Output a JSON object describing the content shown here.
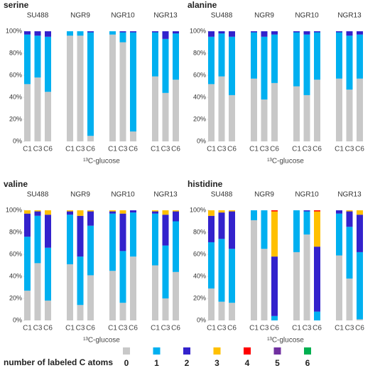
{
  "chart_data": [
    {
      "type": "bar",
      "stacked": true,
      "title": "serine",
      "groups": [
        "SU488",
        "NGR9",
        "NGR10",
        "NGR13"
      ],
      "categories": [
        "C1",
        "C3",
        "C6",
        "C1",
        "C3",
        "C6",
        "C1",
        "C3",
        "C6",
        "C1",
        "C3",
        "C6"
      ],
      "x_label": "¹³C-glucose",
      "ylim": [
        0,
        100
      ],
      "yticks": [
        {
          "value": 0,
          "label": "0%"
        },
        {
          "value": 20,
          "label": "20%"
        },
        {
          "value": 40,
          "label": "40%"
        },
        {
          "value": 60,
          "label": "60%"
        },
        {
          "value": 80,
          "label": "80%"
        },
        {
          "value": 100,
          "label": "100%"
        }
      ],
      "series": [
        {
          "values": [
            52,
            58,
            45,
            96,
            96,
            5,
            97,
            90,
            9,
            59,
            44,
            56
          ]
        },
        {
          "values": [
            45,
            38,
            50,
            4,
            4,
            94,
            3,
            9,
            90,
            40,
            49,
            42
          ]
        },
        {
          "values": [
            3,
            4,
            5,
            0,
            0,
            1,
            0,
            1,
            1,
            1,
            7,
            2
          ]
        },
        {
          "values": [
            0,
            0,
            0,
            0,
            0,
            0,
            0,
            0,
            0,
            0,
            0,
            0
          ]
        },
        {
          "values": [
            0,
            0,
            0,
            0,
            0,
            0,
            0,
            0,
            0,
            0,
            0,
            0
          ]
        },
        {
          "values": [
            0,
            0,
            0,
            0,
            0,
            0,
            0,
            0,
            0,
            0,
            0,
            0
          ]
        },
        {
          "values": [
            0,
            0,
            0,
            0,
            0,
            0,
            0,
            0,
            0,
            0,
            0,
            0
          ]
        }
      ]
    },
    {
      "type": "bar",
      "stacked": true,
      "title": "alanine",
      "groups": [
        "SU488",
        "NGR9",
        "NGR10",
        "NGR13"
      ],
      "categories": [
        "C1",
        "C3",
        "C6",
        "C1",
        "C3",
        "C6",
        "C1",
        "C3",
        "C6",
        "C1",
        "C3",
        "C6"
      ],
      "x_label": "¹³C-glucose",
      "ylim": [
        0,
        100
      ],
      "yticks": [
        {
          "value": 0,
          "label": "0%"
        },
        {
          "value": 20,
          "label": "20%"
        },
        {
          "value": 40,
          "label": "40%"
        },
        {
          "value": 60,
          "label": "60%"
        },
        {
          "value": 80,
          "label": "80%"
        },
        {
          "value": 100,
          "label": "100%"
        }
      ],
      "series": [
        {
          "values": [
            52,
            59,
            42,
            57,
            38,
            53,
            50,
            42,
            56,
            57,
            47,
            57
          ]
        },
        {
          "values": [
            43,
            39,
            53,
            42,
            57,
            44,
            49,
            55,
            43,
            42,
            49,
            40
          ]
        },
        {
          "values": [
            5,
            2,
            5,
            1,
            5,
            3,
            1,
            3,
            1,
            1,
            4,
            3
          ]
        },
        {
          "values": [
            0,
            0,
            0,
            0,
            0,
            0,
            0,
            0,
            0,
            0,
            0,
            0
          ]
        },
        {
          "values": [
            0,
            0,
            0,
            0,
            0,
            0,
            0,
            0,
            0,
            0,
            0,
            0
          ]
        },
        {
          "values": [
            0,
            0,
            0,
            0,
            0,
            0,
            0,
            0,
            0,
            0,
            0,
            0
          ]
        },
        {
          "values": [
            0,
            0,
            0,
            0,
            0,
            0,
            0,
            0,
            0,
            0,
            0,
            0
          ]
        }
      ]
    },
    {
      "type": "bar",
      "stacked": true,
      "title": "valine",
      "groups": [
        "SU488",
        "NGR9",
        "NGR10",
        "NGR13"
      ],
      "categories": [
        "C1",
        "C3",
        "C6",
        "C1",
        "C3",
        "C6",
        "C1",
        "C3",
        "C6",
        "C1",
        "C3",
        "C6"
      ],
      "x_label": "¹³C-glucose",
      "ylim": [
        0,
        100
      ],
      "yticks": [
        {
          "value": 0,
          "label": "0%"
        },
        {
          "value": 20,
          "label": "20%"
        },
        {
          "value": 40,
          "label": "40%"
        },
        {
          "value": 60,
          "label": "60%"
        },
        {
          "value": 80,
          "label": "80%"
        },
        {
          "value": 100,
          "label": "100%"
        }
      ],
      "series": [
        {
          "values": [
            27,
            52,
            18,
            51,
            14,
            41,
            45,
            16,
            58,
            50,
            20,
            44
          ]
        },
        {
          "values": [
            49,
            43,
            48,
            45,
            44,
            45,
            52,
            47,
            40,
            47,
            48,
            46
          ]
        },
        {
          "values": [
            21,
            4,
            30,
            3,
            37,
            13,
            2,
            34,
            2,
            2,
            28,
            9
          ]
        },
        {
          "values": [
            3,
            1,
            4,
            1,
            5,
            1,
            1,
            3,
            0,
            1,
            4,
            1
          ]
        },
        {
          "values": [
            0,
            0,
            0,
            0,
            0,
            0,
            0,
            0,
            0,
            0,
            0,
            0
          ]
        },
        {
          "values": [
            0,
            0,
            0,
            0,
            0,
            0,
            0,
            0,
            0,
            0,
            0,
            0
          ]
        },
        {
          "values": [
            0,
            0,
            0,
            0,
            0,
            0,
            0,
            0,
            0,
            0,
            0,
            0
          ]
        }
      ]
    },
    {
      "type": "bar",
      "stacked": true,
      "title": "histidine",
      "groups": [
        "SU488",
        "NGR9",
        "NGR10",
        "NGR13"
      ],
      "categories": [
        "C1",
        "C3",
        "C6",
        "C1",
        "C3",
        "C6",
        "C1",
        "C3",
        "C6",
        "C1",
        "C3",
        "C6"
      ],
      "x_label": "¹³C-glucose",
      "ylim": [
        0,
        100
      ],
      "yticks": [
        {
          "value": 0,
          "label": "0%"
        },
        {
          "value": 20,
          "label": "20%"
        },
        {
          "value": 40,
          "label": "40%"
        },
        {
          "value": 60,
          "label": "60%"
        },
        {
          "value": 80,
          "label": "80%"
        },
        {
          "value": 100,
          "label": "100%"
        }
      ],
      "series": [
        {
          "values": [
            29,
            17,
            16,
            91,
            65,
            0,
            62,
            78,
            0,
            59,
            38,
            1
          ]
        },
        {
          "values": [
            42,
            57,
            49,
            9,
            35,
            4,
            38,
            21,
            8,
            38,
            47,
            61
          ]
        },
        {
          "values": [
            24,
            24,
            34,
            0,
            0,
            54,
            0,
            1,
            59,
            3,
            14,
            34
          ]
        },
        {
          "values": [
            5,
            2,
            1,
            0,
            0,
            41,
            0,
            0,
            32,
            0,
            1,
            4
          ]
        },
        {
          "values": [
            0,
            0,
            0,
            0,
            0,
            1,
            0,
            0,
            1,
            0,
            0,
            0
          ]
        },
        {
          "values": [
            0,
            0,
            0,
            0,
            0,
            0,
            0,
            0,
            0,
            0,
            0,
            0
          ]
        },
        {
          "values": [
            0,
            0,
            0,
            0,
            0,
            0,
            0,
            0,
            0,
            0,
            0,
            0
          ]
        }
      ]
    }
  ],
  "legend": {
    "title": "number of labeled C atoms",
    "series_names": [
      "0",
      "1",
      "2",
      "3",
      "4",
      "5",
      "6"
    ],
    "colors": [
      "#c8c8c8",
      "#00b0f0",
      "#3322cc",
      "#ffc000",
      "#ff0000",
      "#7030a0",
      "#00b050"
    ]
  }
}
